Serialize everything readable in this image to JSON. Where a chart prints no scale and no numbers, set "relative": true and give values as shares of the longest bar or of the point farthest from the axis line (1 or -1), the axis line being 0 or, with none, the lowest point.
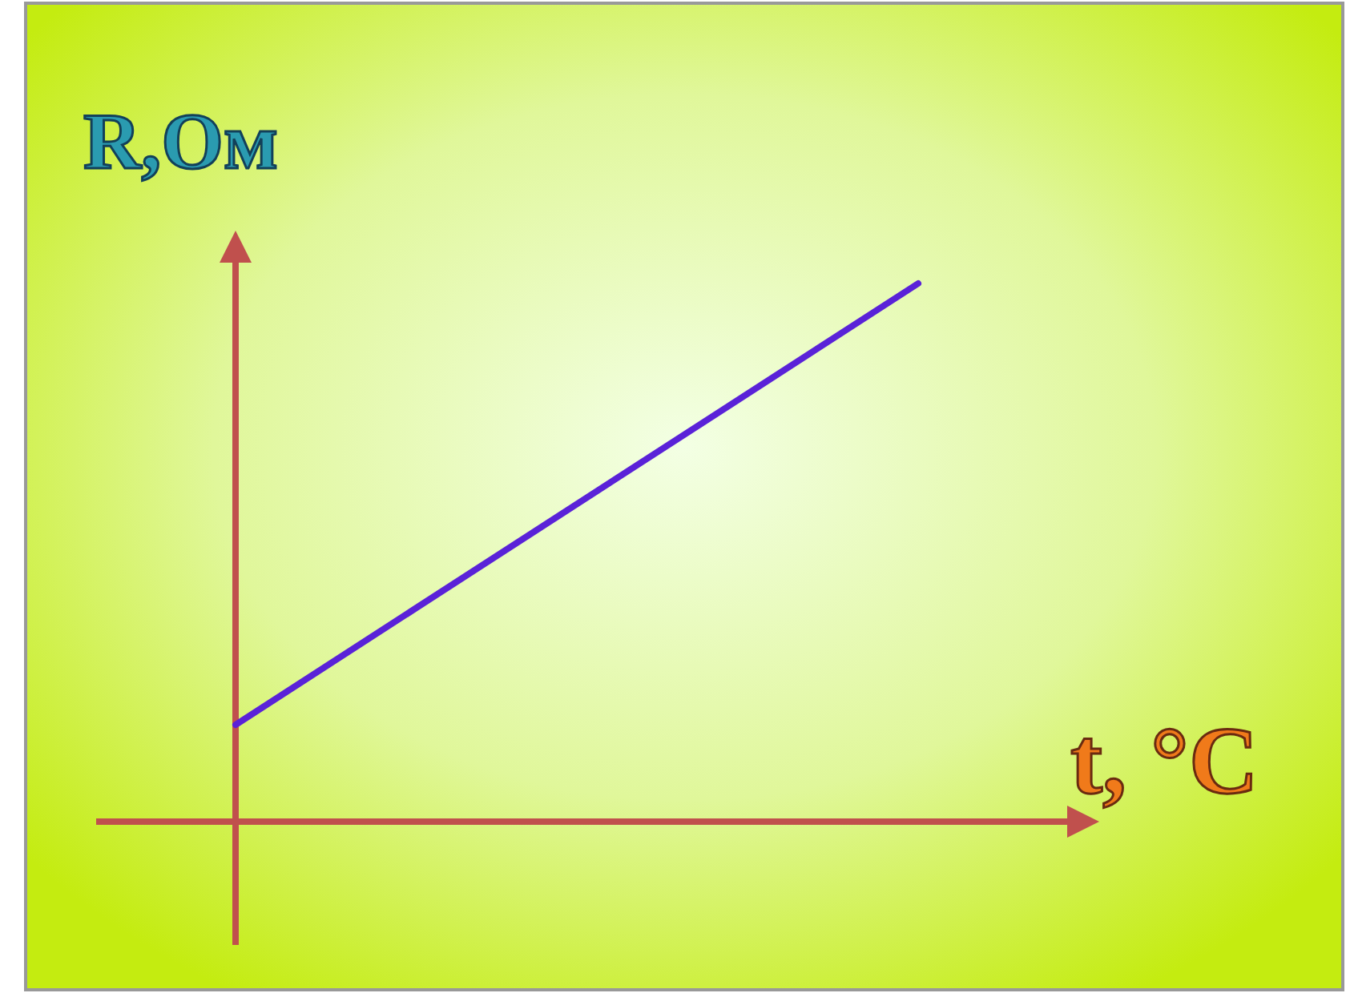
{
  "chart_data": {
    "type": "line",
    "relative": true,
    "xlabel": "t, °C",
    "ylabel": "R,Ом",
    "categories": [
      null,
      null
    ],
    "series": [
      {
        "color": "#5a22d8",
        "values": [
          0.18,
          1
        ]
      }
    ],
    "grid": false,
    "marker": "none",
    "line_style": "solid"
  }
}
